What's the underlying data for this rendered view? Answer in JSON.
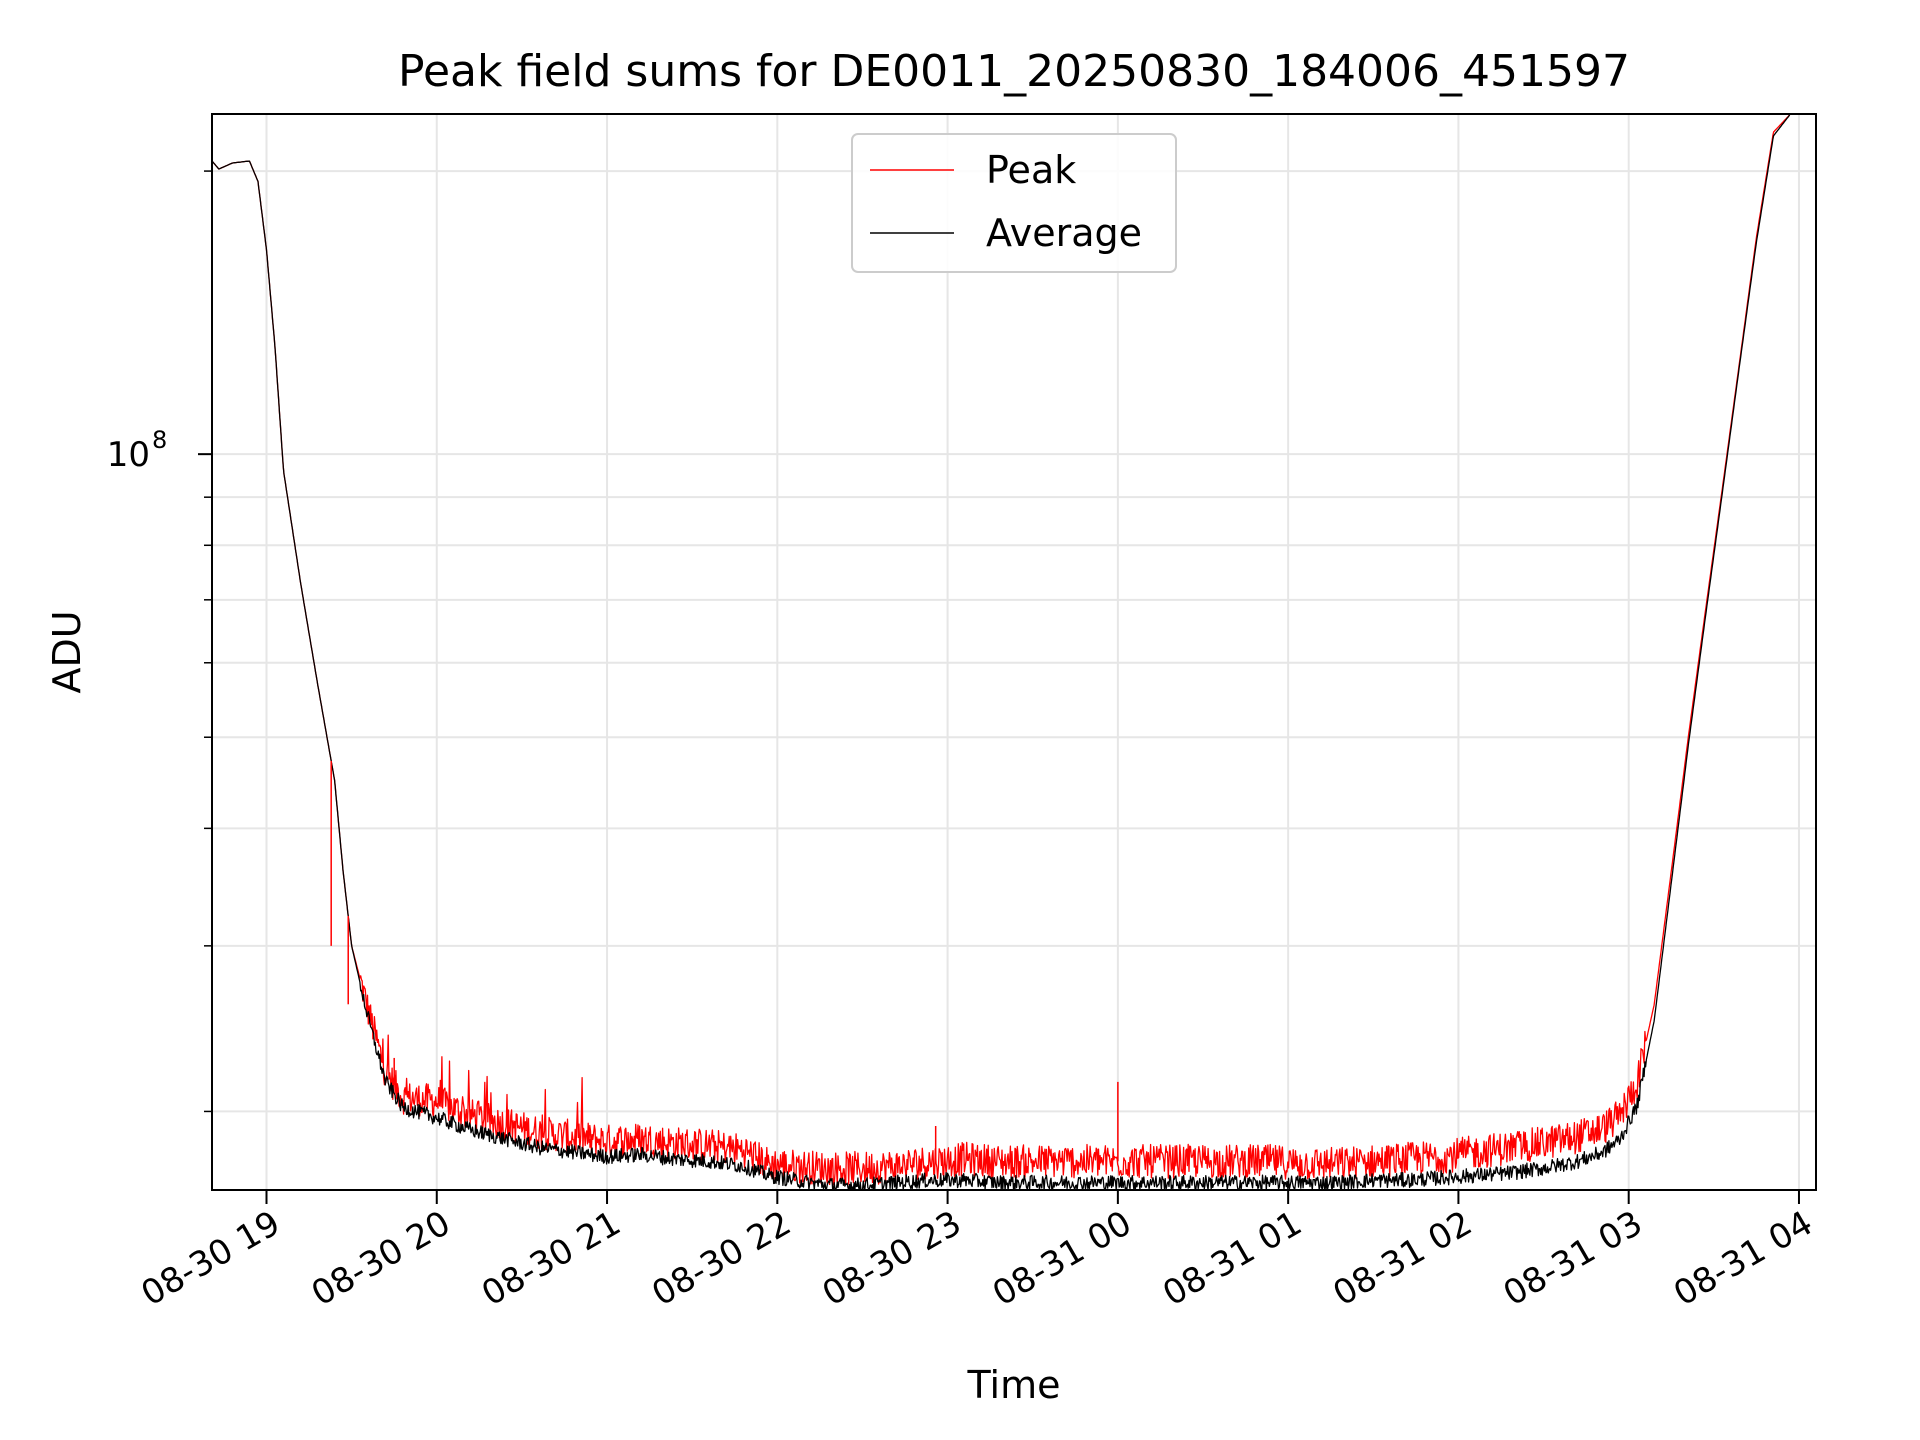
{
  "chart_data": {
    "type": "line",
    "title": "Peak field sums for DE0011_20250830_184006_451597",
    "xlabel": "Time",
    "ylabel": "ADU",
    "yscale": "log",
    "ylim": [
      16500000,
      230000000
    ],
    "xlim_hours": [
      18.68,
      28.1
    ],
    "grid": true,
    "legend": {
      "position": "top-center",
      "entries": [
        "Peak",
        "Average"
      ]
    },
    "x_ticks": [
      {
        "hour": 19,
        "label": "08-30 19"
      },
      {
        "hour": 20,
        "label": "08-30 20"
      },
      {
        "hour": 21,
        "label": "08-30 21"
      },
      {
        "hour": 22,
        "label": "08-30 22"
      },
      {
        "hour": 23,
        "label": "08-30 23"
      },
      {
        "hour": 24,
        "label": "08-31 00"
      },
      {
        "hour": 25,
        "label": "08-31 01"
      },
      {
        "hour": 26,
        "label": "08-31 02"
      },
      {
        "hour": 27,
        "label": "08-31 03"
      },
      {
        "hour": 28,
        "label": "08-31 04"
      }
    ],
    "y_major_ticks": [
      {
        "value": 100000000,
        "base": "10",
        "exp": "8"
      }
    ],
    "y_minor_ticks": [
      20000000,
      30000000,
      40000000,
      50000000,
      60000000,
      70000000,
      80000000,
      90000000,
      200000000
    ],
    "series": [
      {
        "name": "Peak",
        "color": "#ff0000",
        "x": [
          18.68,
          18.72,
          18.8,
          18.9,
          18.95,
          19.0,
          19.05,
          19.1,
          19.2,
          19.3,
          19.4,
          19.45,
          19.5,
          19.6,
          19.7,
          19.8,
          20.0,
          20.2,
          20.4,
          20.6,
          20.8,
          21.0,
          21.2,
          21.4,
          21.6,
          21.8,
          21.95,
          22.1,
          22.3,
          22.5,
          22.7,
          22.9,
          22.95,
          23.1,
          23.3,
          23.5,
          23.7,
          23.9,
          24.0,
          24.1,
          24.3,
          24.5,
          24.7,
          24.9,
          25.1,
          25.3,
          25.5,
          25.7,
          25.9,
          26.1,
          26.3,
          26.5,
          26.7,
          26.85,
          26.95,
          27.05,
          27.15,
          27.25,
          27.35,
          27.45,
          27.55,
          27.65,
          27.75,
          27.85,
          27.95
        ],
        "y": [
          205000000,
          201000000,
          204000000,
          205000000,
          195000000,
          165000000,
          130000000,
          96000000,
          73000000,
          57000000,
          45000000,
          36000000,
          30000000,
          25500000,
          22000000,
          20700000,
          20500000,
          19800000,
          19400000,
          19000000,
          18800000,
          18600000,
          18700000,
          18500000,
          18400000,
          18200000,
          17600000,
          17500000,
          17400000,
          17400000,
          17500000,
          17700000,
          17700000,
          17800000,
          17700000,
          17700000,
          17700000,
          17700000,
          17700000,
          17700000,
          17700000,
          17700000,
          17700000,
          17700000,
          17600000,
          17600000,
          17700000,
          17800000,
          17900000,
          18100000,
          18300000,
          18500000,
          18800000,
          19200000,
          19800000,
          21500000,
          26000000,
          36000000,
          50000000,
          68000000,
          92000000,
          125000000,
          170000000,
          220000000,
          230000000
        ]
      },
      {
        "name": "Average",
        "color": "#000000",
        "x": [
          18.68,
          18.72,
          18.8,
          18.9,
          18.95,
          19.0,
          19.05,
          19.1,
          19.2,
          19.3,
          19.4,
          19.45,
          19.5,
          19.6,
          19.7,
          19.8,
          20.0,
          20.2,
          20.4,
          20.6,
          20.8,
          21.0,
          21.2,
          21.4,
          21.6,
          21.8,
          21.95,
          22.1,
          22.3,
          22.5,
          22.7,
          22.9,
          22.95,
          23.1,
          23.3,
          23.5,
          23.7,
          23.9,
          24.0,
          24.1,
          24.3,
          24.5,
          24.7,
          24.9,
          25.1,
          25.3,
          25.5,
          25.7,
          25.9,
          26.1,
          26.3,
          26.5,
          26.7,
          26.85,
          26.95,
          27.05,
          27.15,
          27.25,
          27.35,
          27.45,
          27.55,
          27.65,
          27.75,
          27.85,
          27.95
        ],
        "y": [
          205000000,
          201000000,
          204000000,
          205000000,
          195000000,
          165000000,
          130000000,
          96000000,
          73000000,
          57000000,
          45000000,
          36000000,
          30000000,
          25000000,
          21500000,
          20200000,
          19700000,
          19100000,
          18700000,
          18300000,
          18100000,
          17900000,
          18000000,
          17800000,
          17700000,
          17500000,
          17100000,
          16900000,
          16700000,
          16700000,
          16800000,
          16900000,
          16900000,
          16900000,
          16800000,
          16800000,
          16800000,
          16800000,
          16800000,
          16800000,
          16800000,
          16800000,
          16800000,
          16800000,
          16800000,
          16800000,
          16900000,
          16900000,
          17000000,
          17100000,
          17200000,
          17400000,
          17700000,
          18100000,
          18700000,
          20300000,
          25000000,
          35000000,
          49000000,
          67000000,
          91000000,
          124000000,
          168000000,
          218000000,
          230000000
        ]
      }
    ]
  }
}
